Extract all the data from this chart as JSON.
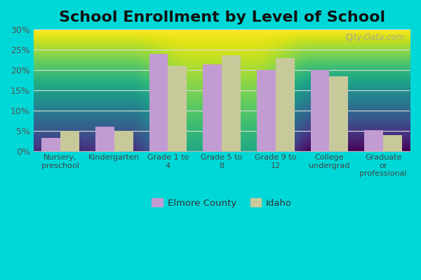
{
  "title": "School Enrollment by Level of School",
  "categories": [
    "Nursery,\npreschool",
    "Kindergarten",
    "Grade 1 to\n4",
    "Grade 5 to\n8",
    "Grade 9 to\n12",
    "College\nundergrad",
    "Graduate\nor\nprofessional"
  ],
  "elmore_county": [
    3.3,
    6.1,
    24.0,
    21.3,
    20.0,
    20.0,
    5.2
  ],
  "idaho": [
    5.0,
    5.0,
    21.0,
    23.7,
    22.9,
    18.5,
    3.9
  ],
  "elmore_color": "#C39BD3",
  "idaho_color": "#C8C99A",
  "background_outer": "#00D8D8",
  "gradient_top": "#FFFFFF",
  "gradient_bottom": "#C8E6C0",
  "ylim": [
    0,
    30
  ],
  "yticks": [
    0,
    5,
    10,
    15,
    20,
    25,
    30
  ],
  "ytick_labels": [
    "0%",
    "5%",
    "10%",
    "15%",
    "20%",
    "25%",
    "30%"
  ],
  "legend_elmore": "Elmore County",
  "legend_idaho": "Idaho",
  "bar_width": 0.35,
  "title_fontsize": 16,
  "watermark": "City-Data.com",
  "grid_color": "#DDDDDD"
}
